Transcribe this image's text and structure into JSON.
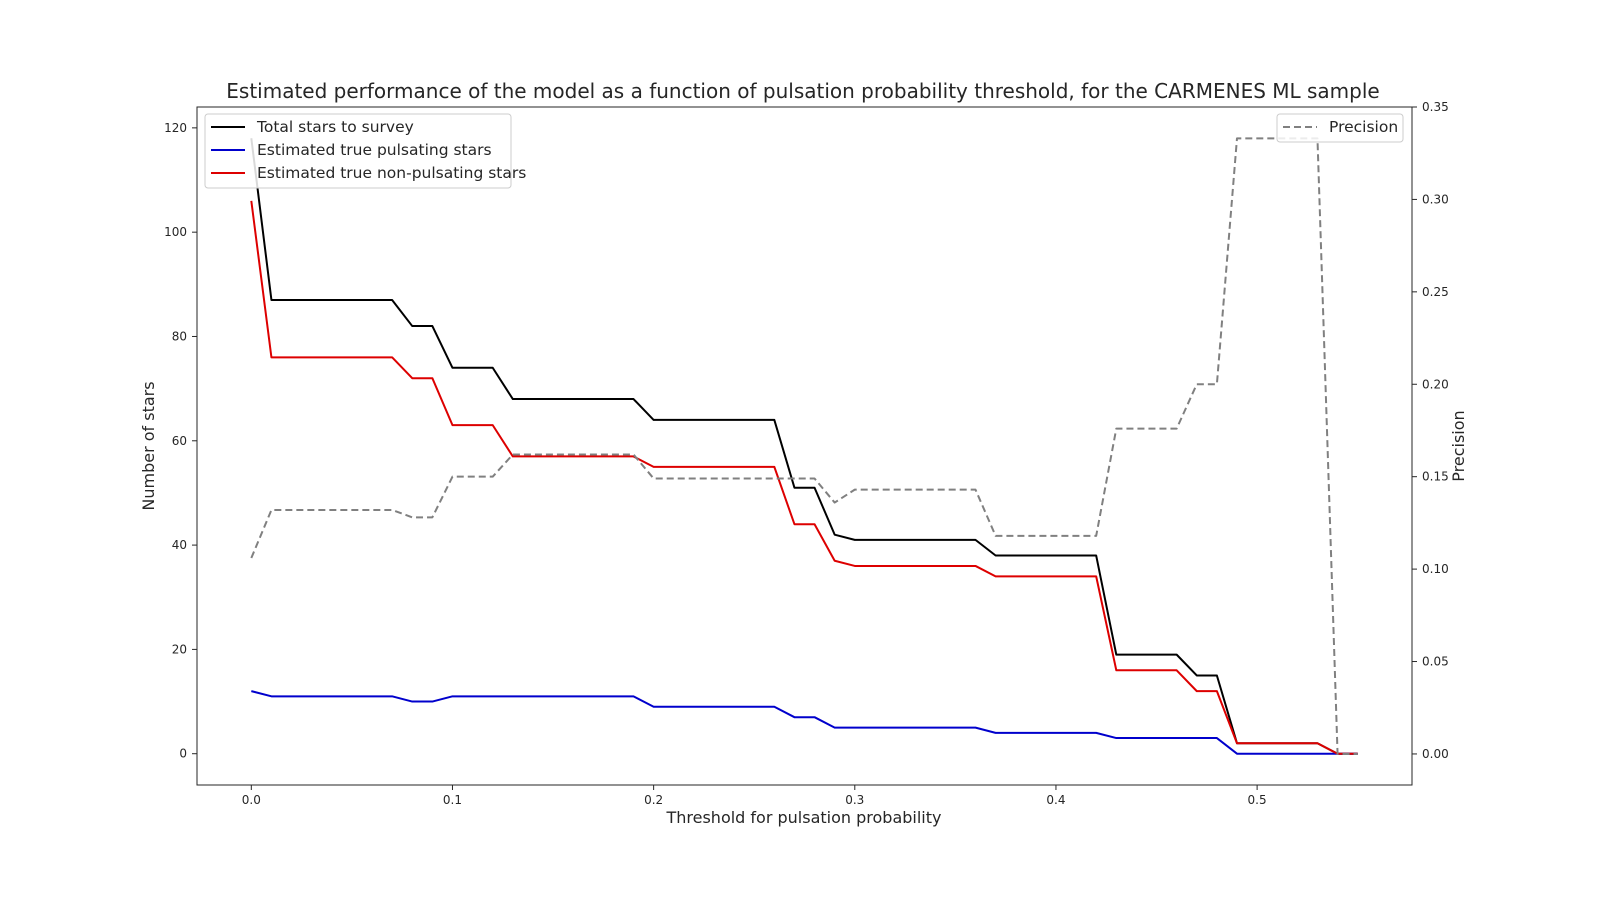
{
  "chart_data": {
    "type": "line",
    "title": "Estimated performance of the model as a function of pulsation probability threshold, for the CARMENES ML sample",
    "xlabel": "Threshold for pulsation probability",
    "ylabel": "Number of stars",
    "ylabel_right": "Precision",
    "xlim": [
      -0.027,
      0.577
    ],
    "ylim": [
      -6,
      124
    ],
    "ylim_right": [
      -0.0168,
      0.35
    ],
    "x_ticks": [
      0.0,
      0.1,
      0.2,
      0.3,
      0.4,
      0.5
    ],
    "x_tick_labels": [
      "0.0",
      "0.1",
      "0.2",
      "0.3",
      "0.4",
      "0.5"
    ],
    "y_ticks": [
      0,
      20,
      40,
      60,
      80,
      100,
      120
    ],
    "y_tick_labels": [
      "0",
      "20",
      "40",
      "60",
      "80",
      "100",
      "120"
    ],
    "y_right_ticks": [
      0.0,
      0.05,
      0.1,
      0.15,
      0.2,
      0.25,
      0.3,
      0.35
    ],
    "y_right_tick_labels": [
      "0.00",
      "0.05",
      "0.10",
      "0.15",
      "0.20",
      "0.25",
      "0.30",
      "0.35"
    ],
    "grid": false,
    "legend_left_placement": "upper-left",
    "legend_right_placement": "upper-right",
    "x": [
      0.0,
      0.01,
      0.02,
      0.03,
      0.04,
      0.05,
      0.06,
      0.07,
      0.08,
      0.09,
      0.1,
      0.11,
      0.12,
      0.13,
      0.14,
      0.15,
      0.16,
      0.17,
      0.18,
      0.19,
      0.2,
      0.21,
      0.22,
      0.23,
      0.24,
      0.25,
      0.26,
      0.27,
      0.28,
      0.29,
      0.3,
      0.31,
      0.32,
      0.33,
      0.34,
      0.35,
      0.36,
      0.37,
      0.38,
      0.39,
      0.4,
      0.41,
      0.42,
      0.43,
      0.44,
      0.45,
      0.46,
      0.47,
      0.48,
      0.49,
      0.5,
      0.51,
      0.52,
      0.53,
      0.54,
      0.55
    ],
    "series": [
      {
        "name": "Total stars to survey",
        "axis": "left",
        "color": "#000000",
        "style": "solid",
        "values": [
          118,
          87,
          87,
          87,
          87,
          87,
          87,
          87,
          82,
          82,
          74,
          74,
          74,
          68,
          68,
          68,
          68,
          68,
          68,
          68,
          64,
          64,
          64,
          64,
          64,
          64,
          64,
          51,
          51,
          42,
          41,
          41,
          41,
          41,
          41,
          41,
          41,
          38,
          38,
          38,
          38,
          38,
          38,
          19,
          19,
          19,
          19,
          15,
          15,
          2,
          2,
          2,
          2,
          2,
          0,
          0
        ]
      },
      {
        "name": "Estimated true pulsating stars",
        "axis": "left",
        "color": "#0000cc",
        "style": "solid",
        "values": [
          12,
          11,
          11,
          11,
          11,
          11,
          11,
          11,
          10,
          10,
          11,
          11,
          11,
          11,
          11,
          11,
          11,
          11,
          11,
          11,
          9,
          9,
          9,
          9,
          9,
          9,
          9,
          7,
          7,
          5,
          5,
          5,
          5,
          5,
          5,
          5,
          5,
          4,
          4,
          4,
          4,
          4,
          4,
          3,
          3,
          3,
          3,
          3,
          3,
          0,
          0,
          0,
          0,
          0,
          0,
          0
        ]
      },
      {
        "name": "Estimated true non-pulsating stars",
        "axis": "left",
        "color": "#dd0000",
        "style": "solid",
        "values": [
          106,
          76,
          76,
          76,
          76,
          76,
          76,
          76,
          72,
          72,
          63,
          63,
          63,
          57,
          57,
          57,
          57,
          57,
          57,
          57,
          55,
          55,
          55,
          55,
          55,
          55,
          55,
          44,
          44,
          37,
          36,
          36,
          36,
          36,
          36,
          36,
          36,
          34,
          34,
          34,
          34,
          34,
          34,
          16,
          16,
          16,
          16,
          12,
          12,
          2,
          2,
          2,
          2,
          2,
          0,
          0
        ]
      },
      {
        "name": "Precision",
        "axis": "right",
        "color": "#808080",
        "style": "dashed",
        "values": [
          0.106,
          0.132,
          0.132,
          0.132,
          0.132,
          0.132,
          0.132,
          0.132,
          0.128,
          0.128,
          0.15,
          0.15,
          0.15,
          0.162,
          0.162,
          0.162,
          0.162,
          0.162,
          0.162,
          0.162,
          0.149,
          0.149,
          0.149,
          0.149,
          0.149,
          0.149,
          0.149,
          0.149,
          0.149,
          0.136,
          0.143,
          0.143,
          0.143,
          0.143,
          0.143,
          0.143,
          0.143,
          0.118,
          0.118,
          0.118,
          0.118,
          0.118,
          0.118,
          0.176,
          0.176,
          0.176,
          0.176,
          0.2,
          0.2,
          0.333,
          0.333,
          0.333,
          0.333,
          0.333,
          0.0,
          0.0
        ]
      }
    ]
  }
}
